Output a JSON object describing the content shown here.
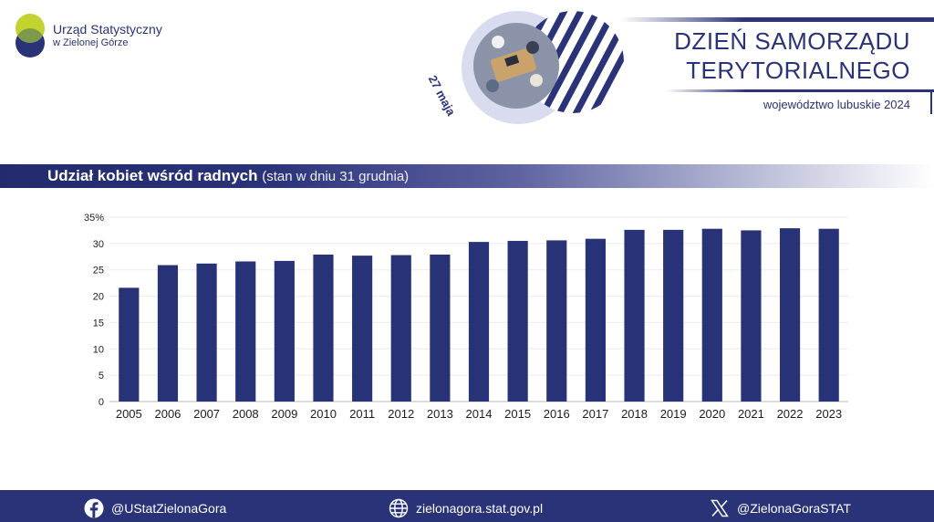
{
  "header": {
    "org_name": "Urząd Statystyczny",
    "org_sub": "w Zielonej Górze",
    "date_tag": "27 maja",
    "title_line1": "DZIEŃ SAMORZĄDU",
    "title_line2": "TERYTORIALNEGO",
    "subtitle": "województwo lubuskie 2024"
  },
  "section": {
    "title": "Udział kobiet wśród radnych",
    "note": "(stan w dniu 31 grudnia)"
  },
  "colors": {
    "bar": "#283276",
    "accent": "#2a3278",
    "logo_green": "#c2d32f"
  },
  "chart_data": {
    "type": "bar",
    "categories": [
      "2005",
      "2006",
      "2007",
      "2008",
      "2009",
      "2010",
      "2011",
      "2012",
      "2013",
      "2014",
      "2015",
      "2016",
      "2017",
      "2018",
      "2019",
      "2020",
      "2021",
      "2022",
      "2023"
    ],
    "values": [
      21.6,
      25.9,
      26.2,
      26.6,
      26.7,
      27.9,
      27.7,
      27.8,
      27.9,
      30.3,
      30.5,
      30.6,
      30.9,
      32.6,
      32.6,
      32.8,
      32.5,
      32.9,
      32.8
    ],
    "yticks": [
      "0",
      "5",
      "10",
      "15",
      "20",
      "25",
      "30",
      "35%"
    ],
    "ylim": [
      0,
      35
    ],
    "grid": true,
    "title": "",
    "xlabel": "",
    "ylabel": ""
  },
  "footer": {
    "facebook_icon": "facebook-icon",
    "facebook": "@UStatZielonaGora",
    "web_icon": "globe-icon",
    "web": "zielonagora.stat.gov.pl",
    "x_icon": "x-logo-icon",
    "x": "@ZielonaGoraSTAT"
  }
}
